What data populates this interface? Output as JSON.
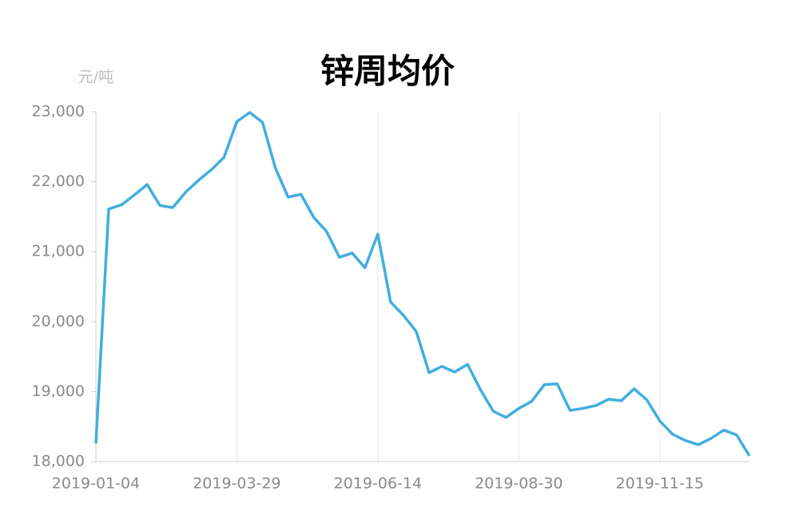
{
  "chart_data": {
    "type": "line",
    "title": "锌周均价",
    "y_axis_label": "元/吨",
    "categories": [
      "2019-01-04",
      null,
      null,
      null,
      null,
      null,
      null,
      null,
      null,
      null,
      null,
      "2019-03-29",
      null,
      null,
      null,
      null,
      null,
      null,
      null,
      null,
      null,
      null,
      "2019-06-14",
      null,
      null,
      null,
      null,
      null,
      null,
      null,
      null,
      null,
      null,
      "2019-08-30",
      null,
      null,
      null,
      null,
      null,
      null,
      null,
      null,
      null,
      null,
      "2019-11-15",
      null,
      null,
      null,
      null,
      null,
      null,
      null
    ],
    "series": [
      {
        "name": "锌周均价",
        "color": "#41aedf",
        "values": [
          18260,
          21610,
          21670,
          21810,
          21960,
          21660,
          21630,
          21850,
          22020,
          22170,
          22350,
          22860,
          22990,
          22850,
          22200,
          21780,
          21820,
          21490,
          21290,
          20920,
          20980,
          20770,
          21250,
          20280,
          20090,
          19860,
          19270,
          19360,
          19280,
          19390,
          19030,
          18720,
          18630,
          18760,
          18860,
          19100,
          19110,
          18730,
          18760,
          18800,
          18890,
          18870,
          19040,
          18880,
          18580,
          18390,
          18300,
          18240,
          18330,
          18450,
          18380,
          18080
        ]
      }
    ],
    "ylim": [
      18000,
      23000
    ],
    "yticks": [
      {
        "value": 18000,
        "label": "18,000"
      },
      {
        "value": 19000,
        "label": "19,000"
      },
      {
        "value": 20000,
        "label": "20,000"
      },
      {
        "value": 21000,
        "label": "21,000"
      },
      {
        "value": 22000,
        "label": "22,000"
      },
      {
        "value": 23000,
        "label": "23,000"
      }
    ],
    "grid": "x"
  }
}
